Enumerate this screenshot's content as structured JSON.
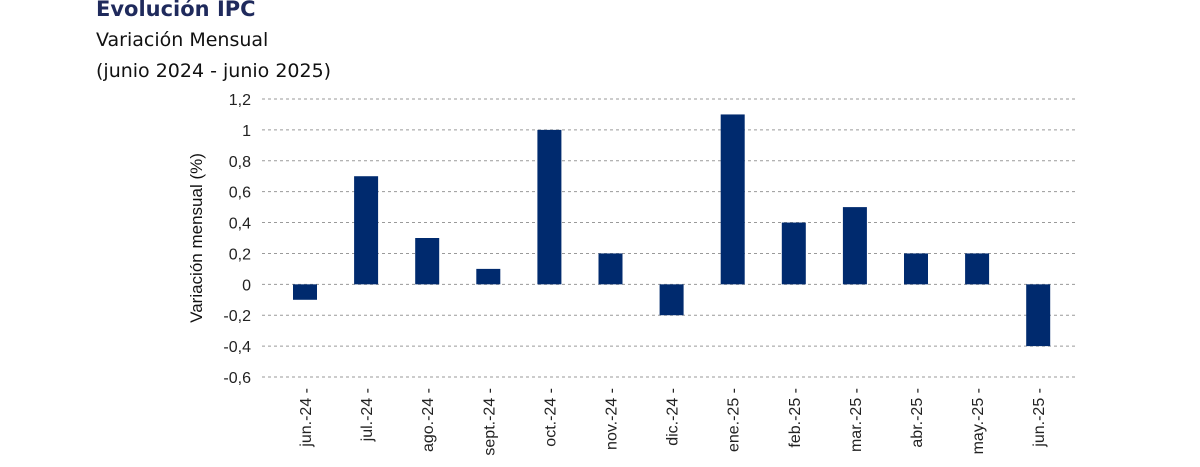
{
  "header": {
    "title": "Evolución IPC",
    "subtitle": "Variación Mensual",
    "period": "(junio 2024 - junio 2025)"
  },
  "colors": {
    "bar": "#002a6e",
    "grid": "#9a9a9a"
  },
  "chart_data": {
    "type": "bar",
    "title": "Evolución IPC",
    "subtitle": "Variación Mensual (junio 2024 - junio 2025)",
    "xlabel": "",
    "ylabel": "Variación mensual (%)",
    "ylim": [
      -0.6,
      1.2
    ],
    "yticks": [
      "1,2",
      "1",
      "0,8",
      "0,6",
      "0,4",
      "0,2",
      "0",
      "-0,2",
      "-0,4",
      "-0,6"
    ],
    "ytick_values": [
      1.2,
      1,
      0.8,
      0.6,
      0.4,
      0.2,
      0,
      -0.2,
      -0.4,
      -0.6
    ],
    "grid": "horizontal dashed",
    "categories": [
      "jun.-24",
      "jul.-24",
      "ago.-24",
      "sept.-24",
      "oct.-24",
      "nov.-24",
      "dic.-24",
      "ene.-25",
      "feb.-25",
      "mar.-25",
      "abr.-25",
      "may.-25",
      "jun.-25"
    ],
    "values": [
      -0.1,
      0.7,
      0.3,
      0.1,
      1.0,
      0.2,
      -0.2,
      1.1,
      0.4,
      0.5,
      0.2,
      0.2,
      -0.4
    ]
  }
}
